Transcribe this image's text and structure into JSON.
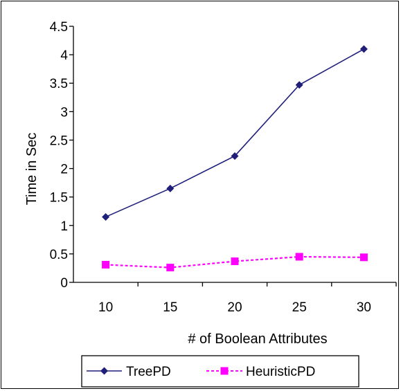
{
  "chart_data": {
    "type": "line",
    "title": "",
    "xlabel": "# of Boolean Attributes",
    "ylabel": "Time in Sec",
    "categories": [
      "10",
      "15",
      "20",
      "25",
      "30"
    ],
    "x": [
      10,
      15,
      20,
      25,
      30
    ],
    "yticks": [
      "0",
      "0.5",
      "1",
      "1.5",
      "2",
      "2.5",
      "3",
      "3.5",
      "4",
      "4.5"
    ],
    "ylim": [
      0,
      4.5
    ],
    "grid": false,
    "legend_position": "bottom",
    "series": [
      {
        "name": "TreePD",
        "values": [
          1.15,
          1.65,
          2.22,
          3.47,
          4.1
        ],
        "color": "#1F1F7A",
        "marker": "diamond",
        "line_style": "solid"
      },
      {
        "name": "HeuristicPD",
        "values": [
          0.31,
          0.26,
          0.37,
          0.45,
          0.44
        ],
        "color": "#FF00FF",
        "marker": "square",
        "line_style": "dashed"
      }
    ]
  }
}
